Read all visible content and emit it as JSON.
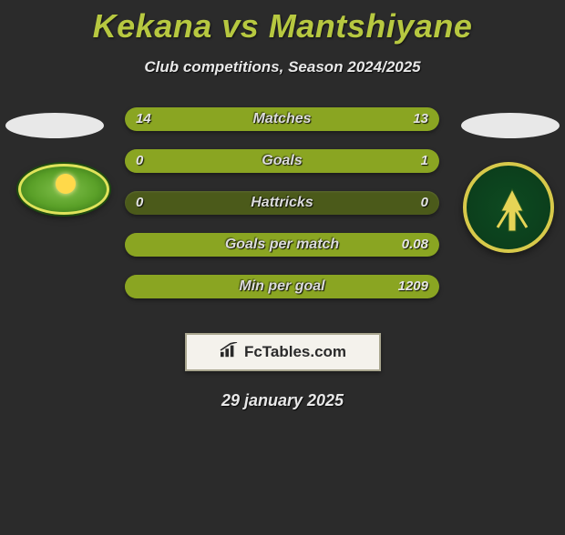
{
  "heading": {
    "title": "Kekana vs Mantshiyane",
    "subtitle": "Club competitions, Season 2024/2025"
  },
  "colors": {
    "background": "#2b2b2b",
    "accent": "#b7c840",
    "bar_track": "#4b5a1a",
    "bar_fill": "#8aa522",
    "text_light": "#e8e8e8"
  },
  "bars": [
    {
      "label": "Matches",
      "left_value": "14",
      "right_value": "13",
      "left_fill_pct": 51,
      "right_fill_pct": 49
    },
    {
      "label": "Goals",
      "left_value": "0",
      "right_value": "1",
      "left_fill_pct": 0,
      "right_fill_pct": 100
    },
    {
      "label": "Hattricks",
      "left_value": "0",
      "right_value": "0",
      "left_fill_pct": 0,
      "right_fill_pct": 0
    },
    {
      "label": "Goals per match",
      "left_value": "",
      "right_value": "0.08",
      "left_fill_pct": 0,
      "right_fill_pct": 100
    },
    {
      "label": "Min per goal",
      "left_value": "",
      "right_value": "1209",
      "left_fill_pct": 0,
      "right_fill_pct": 100
    }
  ],
  "brand": {
    "text": "FcTables.com"
  },
  "date": "29 january 2025"
}
